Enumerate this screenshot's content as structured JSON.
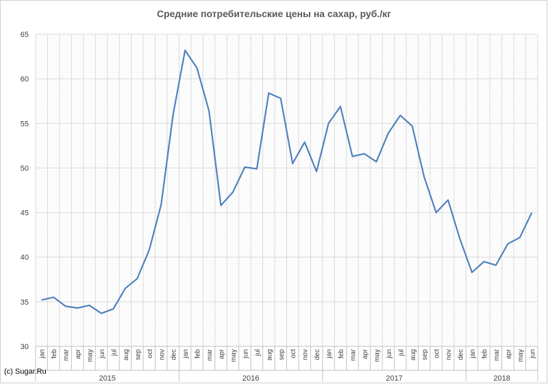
{
  "copyright": "(c) Sugar.Ru",
  "chart_data": {
    "type": "line",
    "title": "Средние потребительские цены на сахар, руб./кг",
    "xlabel": "",
    "ylabel": "",
    "ylim": [
      30,
      65
    ],
    "yticks": [
      30,
      35,
      40,
      45,
      50,
      55,
      60,
      65
    ],
    "grid": true,
    "line_color": "#4f81bd",
    "x": [
      "jan",
      "feb",
      "mar",
      "apr",
      "may",
      "jun",
      "jul",
      "aug",
      "sep",
      "oct",
      "nov",
      "dec",
      "jan",
      "feb",
      "mar",
      "apr",
      "may",
      "jun",
      "jul",
      "aug",
      "sep",
      "oct",
      "nov",
      "dec",
      "jan",
      "feb",
      "mar",
      "apr",
      "may",
      "jun",
      "jul",
      "aug",
      "sep",
      "oct",
      "nov",
      "dec",
      "jan",
      "feb",
      "mar",
      "apr",
      "may",
      "jun"
    ],
    "years": [
      {
        "label": "2015",
        "months": 12
      },
      {
        "label": "2016",
        "months": 12
      },
      {
        "label": "2017",
        "months": 12
      },
      {
        "label": "2018",
        "months": 6
      }
    ],
    "series": [
      {
        "values": [
          35.2,
          35.5,
          34.5,
          34.3,
          34.6,
          33.7,
          34.2,
          36.5,
          37.6,
          40.8,
          45.9,
          56.0,
          63.2,
          61.2,
          56.4,
          45.8,
          47.3,
          50.1,
          49.9,
          58.4,
          57.8,
          50.5,
          52.9,
          49.6,
          55.0,
          56.9,
          51.3,
          51.6,
          50.7,
          53.9,
          55.9,
          54.7,
          49.0,
          45.0,
          46.4,
          42.0,
          38.3,
          39.5,
          39.1,
          41.5,
          42.2,
          45.0
        ]
      }
    ]
  }
}
